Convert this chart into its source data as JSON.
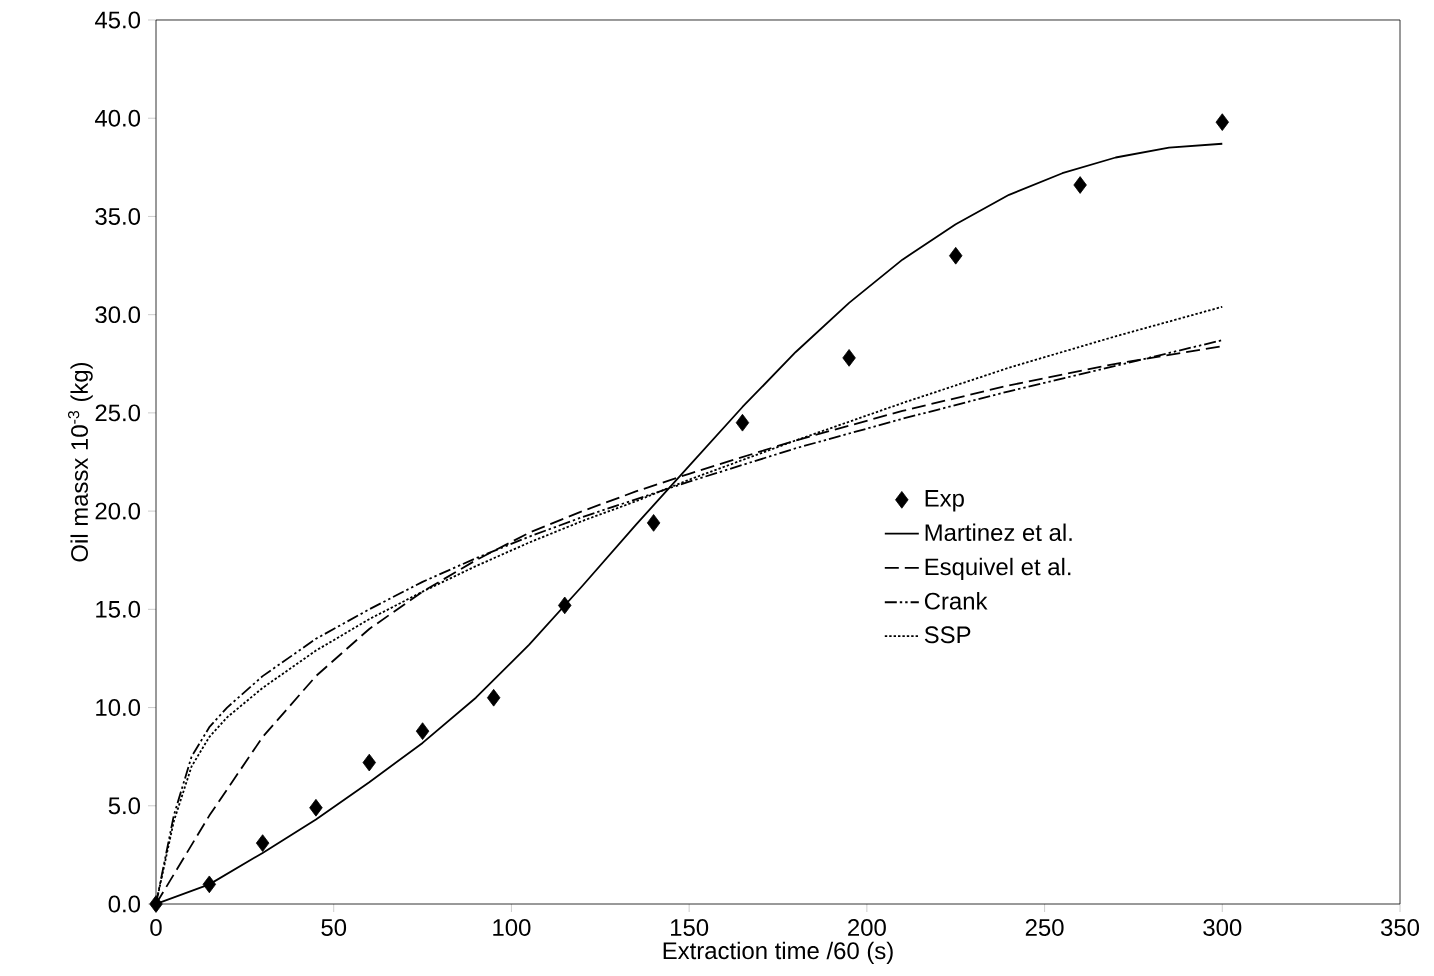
{
  "chart_data": {
    "type": "line",
    "xlabel": "Extraction time /60 (s)",
    "ylabel": "Oil massx 10$^{-3}$ (kg)",
    "xlim": [
      0,
      350
    ],
    "xticks": [
      0,
      50,
      100,
      150,
      200,
      250,
      300,
      350
    ],
    "ylim": [
      0,
      45
    ],
    "yticks": [
      {
        "value": 0,
        "label": "0.0"
      },
      {
        "value": 5,
        "label": "5.0"
      },
      {
        "value": 10,
        "label": "10.0"
      },
      {
        "value": 15,
        "label": "15.0"
      },
      {
        "value": 20,
        "label": "20.0"
      },
      {
        "value": 25,
        "label": "25.0"
      },
      {
        "value": 30,
        "label": "30.0"
      },
      {
        "value": 35,
        "label": "35.0"
      },
      {
        "value": 40,
        "label": "40.0"
      },
      {
        "value": 45,
        "label": "45.0"
      }
    ],
    "grid": false,
    "legend": "right",
    "series": [
      {
        "name": "Exp",
        "type": "scatter",
        "marker": "diamond",
        "color": "#000000",
        "x": [
          0,
          15,
          30,
          45,
          60,
          75,
          95,
          115,
          140,
          165,
          195,
          225,
          260,
          300
        ],
        "values": [
          0,
          1.0,
          3.1,
          4.9,
          7.2,
          8.8,
          10.5,
          15.2,
          19.4,
          24.5,
          27.8,
          33.0,
          36.6,
          39.8
        ]
      },
      {
        "name": "Martinez et al.",
        "line_style": "solid",
        "color": "#000000",
        "x": [
          0,
          15,
          30,
          45,
          60,
          75,
          90,
          105,
          120,
          135,
          150,
          165,
          180,
          195,
          210,
          225,
          240,
          255,
          270,
          285,
          300
        ],
        "values": [
          0,
          1.0,
          2.6,
          4.3,
          6.2,
          8.2,
          10.5,
          13.2,
          16.2,
          19.3,
          22.3,
          25.3,
          28.1,
          30.6,
          32.8,
          34.6,
          36.1,
          37.2,
          38.0,
          38.5,
          38.7
        ]
      },
      {
        "name": "Esquivel et al.",
        "line_style": "dashed",
        "color": "#000000",
        "x": [
          0,
          15,
          30,
          45,
          60,
          75,
          90,
          105,
          120,
          135,
          150,
          180,
          210,
          240,
          270,
          300
        ],
        "values": [
          0,
          4.5,
          8.5,
          11.6,
          14.0,
          15.9,
          17.5,
          18.9,
          20.0,
          21.0,
          21.9,
          23.6,
          25.1,
          26.4,
          27.5,
          28.4
        ]
      },
      {
        "name": "Crank",
        "line_style": "dashdotdot",
        "color": "#000000",
        "x": [
          0,
          5,
          10,
          15,
          20,
          30,
          45,
          60,
          75,
          90,
          105,
          120,
          135,
          150,
          180,
          210,
          240,
          270,
          300
        ],
        "values": [
          0,
          4.5,
          7.5,
          9.0,
          10.0,
          11.6,
          13.5,
          15.0,
          16.4,
          17.6,
          18.7,
          19.7,
          20.6,
          21.5,
          23.2,
          24.7,
          26.1,
          27.4,
          28.7
        ]
      },
      {
        "name": "SSP",
        "line_style": "dotted",
        "color": "#000000",
        "x": [
          0,
          5,
          10,
          15,
          20,
          30,
          45,
          60,
          75,
          90,
          105,
          120,
          135,
          150,
          180,
          210,
          240,
          270,
          300
        ],
        "values": [
          0,
          4.2,
          7.0,
          8.5,
          9.5,
          11.0,
          12.9,
          14.5,
          15.9,
          17.2,
          18.4,
          19.5,
          20.5,
          21.6,
          23.6,
          25.5,
          27.3,
          28.9,
          30.4
        ]
      }
    ]
  }
}
